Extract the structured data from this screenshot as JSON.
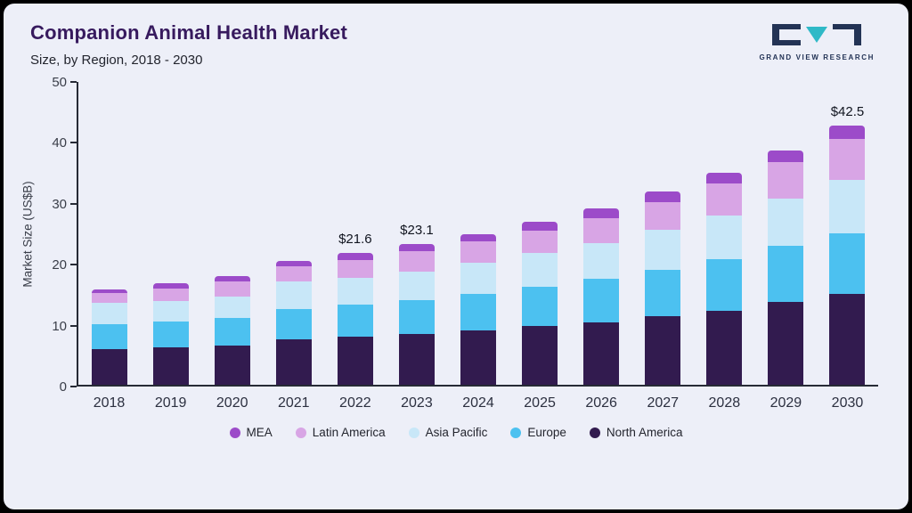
{
  "header": {
    "title": "Companion Animal Health Market",
    "subtitle": "Size, by Region, 2018 - 2030",
    "logo_text": "GRAND VIEW RESEARCH"
  },
  "colors": {
    "panel_background": "#edeff8",
    "frame": "#000000",
    "title": "#371a5e",
    "axis": "#262a35",
    "logo_teal": "#2fb9c7",
    "logo_navy": "#233355"
  },
  "chart_data": {
    "type": "bar",
    "stacked": true,
    "title": "Companion Animal Health Market Size, by Region, 2018 - 2030",
    "xlabel": "",
    "ylabel": "Market Size (US$B)",
    "ylim": [
      0,
      50
    ],
    "yticks": [
      0,
      10,
      20,
      30,
      40,
      50
    ],
    "grid": false,
    "legend_position": "bottom",
    "categories": [
      "2018",
      "2019",
      "2020",
      "2021",
      "2022",
      "2023",
      "2024",
      "2025",
      "2026",
      "2027",
      "2028",
      "2029",
      "2030"
    ],
    "series": [
      {
        "name": "North America",
        "color": "#321b4f",
        "values": [
          5.8,
          6.2,
          6.5,
          7.4,
          7.9,
          8.3,
          8.9,
          9.6,
          10.3,
          11.2,
          12.2,
          13.6,
          14.9
        ]
      },
      {
        "name": "Europe",
        "color": "#4cc1f0",
        "values": [
          4.1,
          4.2,
          4.4,
          5.1,
          5.3,
          5.6,
          6.0,
          6.5,
          7.1,
          7.7,
          8.4,
          9.2,
          10.0
        ]
      },
      {
        "name": "Asia Pacific",
        "color": "#c8e7f8",
        "values": [
          3.6,
          3.3,
          3.6,
          4.4,
          4.4,
          4.6,
          5.1,
          5.5,
          5.9,
          6.6,
          7.2,
          7.7,
          8.8
        ]
      },
      {
        "name": "Latin America",
        "color": "#d8a5e5",
        "values": [
          1.5,
          2.1,
          2.4,
          2.6,
          2.9,
          3.4,
          3.5,
          3.7,
          4.1,
          4.5,
          5.2,
          6.0,
          6.7
        ]
      },
      {
        "name": "MEA",
        "color": "#9c4bc9",
        "values": [
          0.7,
          0.9,
          0.9,
          0.9,
          1.1,
          1.2,
          1.2,
          1.4,
          1.6,
          1.7,
          1.8,
          1.9,
          2.1
        ]
      }
    ],
    "totals": [
      15.7,
      16.7,
      17.8,
      20.4,
      21.6,
      23.1,
      24.7,
      26.7,
      29.0,
      31.7,
      34.8,
      38.4,
      42.5
    ],
    "total_labels": {
      "2022": "$21.6",
      "2023": "$23.1",
      "2030": "$42.5"
    }
  },
  "legend": {
    "items": [
      {
        "label": "MEA",
        "color": "#9c4bc9"
      },
      {
        "label": "Latin America",
        "color": "#d8a5e5"
      },
      {
        "label": "Asia Pacific",
        "color": "#c8e7f8"
      },
      {
        "label": "Europe",
        "color": "#4cc1f0"
      },
      {
        "label": "North America",
        "color": "#321b4f"
      }
    ]
  }
}
